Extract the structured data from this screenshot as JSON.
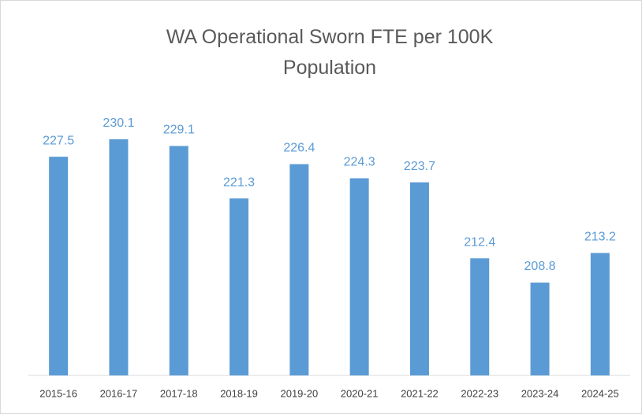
{
  "chart_data": {
    "type": "bar",
    "title": "WA Operational Sworn FTE per 100K Population",
    "categories": [
      "2015-16",
      "2016-17",
      "2017-18",
      "2018-19",
      "2019-20",
      "2020-21",
      "2021-22",
      "2022-23",
      "2023-24",
      "2024-25"
    ],
    "values": [
      227.5,
      230.1,
      229.1,
      221.3,
      226.4,
      224.3,
      223.7,
      212.4,
      208.8,
      213.2
    ],
    "color": "#5b9bd5",
    "ylim": [
      195,
      235
    ]
  }
}
